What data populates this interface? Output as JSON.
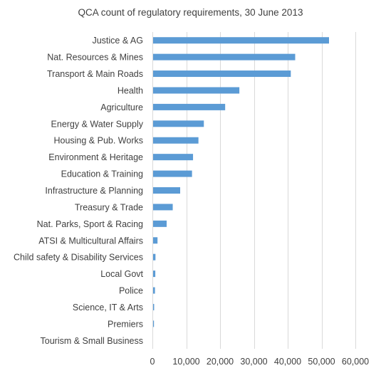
{
  "chart_data": {
    "type": "bar",
    "orientation": "horizontal",
    "title": "QCA count of regulatory requirements, 30 June 2013",
    "xlabel": "",
    "ylabel": "",
    "categories": [
      "Justice & AG",
      "Nat. Resources & Mines",
      "Transport & Main Roads",
      "Health",
      "Agriculture",
      "Energy & Water Supply",
      "Housing & Pub. Works",
      "Environment & Heritage",
      "Education & Training",
      "Infrastructure & Planning",
      "Treasury & Trade",
      "Nat. Parks, Sport & Racing",
      "ATSI & Multicultural Affairs",
      "Child safety & Disability Services",
      "Local Govt",
      "Police",
      "Science, IT & Arts",
      "Premiers",
      "Tourism & Small Business"
    ],
    "values": [
      52000,
      42000,
      40700,
      25500,
      21300,
      15000,
      13400,
      11800,
      11500,
      8000,
      5800,
      4000,
      1300,
      700,
      650,
      550,
      300,
      250,
      0
    ],
    "xlim": [
      0,
      60000
    ],
    "xticks": [
      0,
      10000,
      20000,
      30000,
      40000,
      50000,
      60000
    ],
    "xtick_labels": [
      "0",
      "10,000",
      "20,000",
      "30,000",
      "40,000",
      "50,000",
      "60,000"
    ],
    "grid": true,
    "legend": "none",
    "bar_color": "#5B9BD5",
    "grid_color": "#D9D9D9",
    "text_color": "#404040"
  }
}
